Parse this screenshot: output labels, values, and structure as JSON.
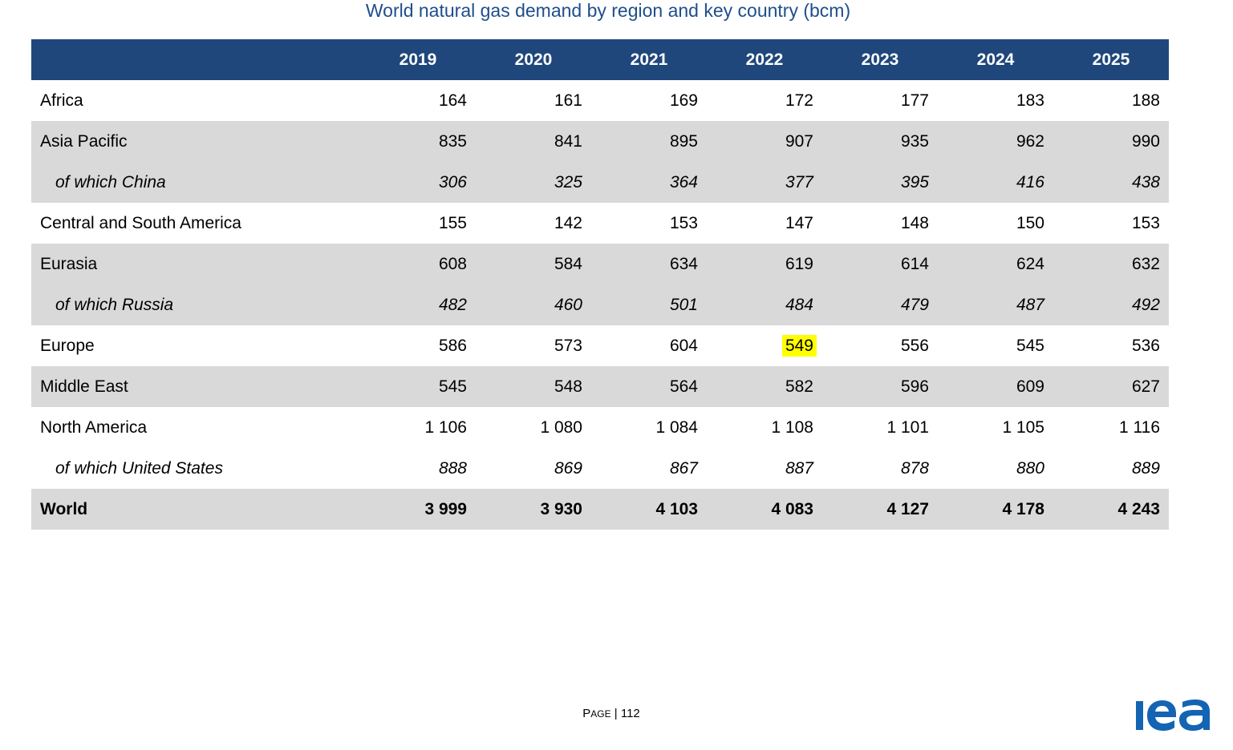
{
  "title": "World natural gas demand by region and key country (bcm)",
  "table": {
    "columns": [
      "2019",
      "2020",
      "2021",
      "2022",
      "2023",
      "2024",
      "2025"
    ],
    "rows": [
      {
        "label": "Africa",
        "values": [
          "164",
          "161",
          "169",
          "172",
          "177",
          "183",
          "188"
        ],
        "shaded": false,
        "sub": false,
        "total": false
      },
      {
        "label": "Asia Pacific",
        "values": [
          "835",
          "841",
          "895",
          "907",
          "935",
          "962",
          "990"
        ],
        "shaded": true,
        "sub": false,
        "total": false
      },
      {
        "label": "of which China",
        "values": [
          "306",
          "325",
          "364",
          "377",
          "395",
          "416",
          "438"
        ],
        "shaded": true,
        "sub": true,
        "total": false
      },
      {
        "label": "Central and South America",
        "values": [
          "155",
          "142",
          "153",
          "147",
          "148",
          "150",
          "153"
        ],
        "shaded": false,
        "sub": false,
        "total": false
      },
      {
        "label": "Eurasia",
        "values": [
          "608",
          "584",
          "634",
          "619",
          "614",
          "624",
          "632"
        ],
        "shaded": true,
        "sub": false,
        "total": false
      },
      {
        "label": "of which Russia",
        "values": [
          "482",
          "460",
          "501",
          "484",
          "479",
          "487",
          "492"
        ],
        "shaded": true,
        "sub": true,
        "total": false
      },
      {
        "label": "Europe",
        "values": [
          "586",
          "573",
          "604",
          "549",
          "556",
          "545",
          "536"
        ],
        "shaded": false,
        "sub": false,
        "total": false,
        "highlight_col": 3
      },
      {
        "label": "Middle East",
        "values": [
          "545",
          "548",
          "564",
          "582",
          "596",
          "609",
          "627"
        ],
        "shaded": true,
        "sub": false,
        "total": false
      },
      {
        "label": "North America",
        "values": [
          "1 106",
          "1 080",
          "1 084",
          "1 108",
          "1 101",
          "1 105",
          "1 116"
        ],
        "shaded": false,
        "sub": false,
        "total": false
      },
      {
        "label": "of which United States",
        "values": [
          "888",
          "869",
          "867",
          "887",
          "878",
          "880",
          "889"
        ],
        "shaded": false,
        "sub": true,
        "total": false
      },
      {
        "label": "World",
        "values": [
          "3 999",
          "3 930",
          "4 103",
          "4 083",
          "4 127",
          "4 178",
          "4 243"
        ],
        "shaded": true,
        "sub": false,
        "total": true
      }
    ]
  },
  "footer": {
    "page_label_first": "P",
    "page_label_rest": "AGE",
    "separator": "|",
    "page_number": "112"
  },
  "logo": {
    "name": "iea-logo",
    "text": "iea",
    "color": "#1464b4"
  },
  "colors": {
    "header_bg": "#1f477c",
    "shaded_row_bg": "#d9d9d9",
    "title": "#1f4e8c",
    "highlight": "#ffff00"
  }
}
